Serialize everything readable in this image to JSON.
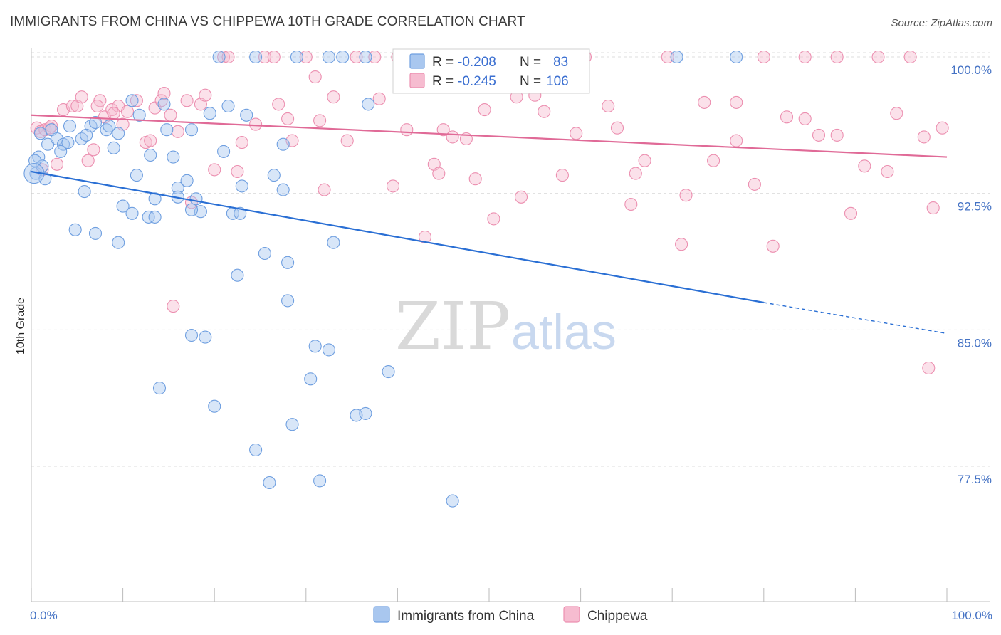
{
  "header": {
    "title": "IMMIGRANTS FROM CHINA VS CHIPPEWA 10TH GRADE CORRELATION CHART",
    "source": "Source: ZipAtlas.com"
  },
  "watermark": {
    "zip": "ZIP",
    "atlas": "atlas"
  },
  "legend": {
    "r_label": "R =",
    "n_label": "N =",
    "rows": [
      {
        "r": "-0.208",
        "n": "83"
      },
      {
        "r": "-0.245",
        "n": "106"
      }
    ]
  },
  "colors": {
    "china_fill": "#a9c7ef",
    "china_stroke": "#6f9fe0",
    "china_line": "#2a6fd4",
    "chippewa_fill": "#f6bcd0",
    "chippewa_stroke": "#ec8fb0",
    "chippewa_line": "#e06a97",
    "tick_label": "#4472c4",
    "grid": "#dddddd"
  },
  "chart_data": {
    "type": "scatter",
    "xlabel": "",
    "ylabel": "10th Grade",
    "xlim": [
      0,
      100
    ],
    "ylim": [
      70.5,
      100.8
    ],
    "x_tick_labels": [
      "0.0%",
      "100.0%"
    ],
    "y_ticks": [
      77.5,
      85.0,
      92.5,
      100.0
    ],
    "y_tick_labels": [
      "77.5%",
      "85.0%",
      "92.5%",
      "100.0%"
    ],
    "grid": true,
    "legend_position": "top-center",
    "series": [
      {
        "name": "Immigrants from China",
        "trend": {
          "x0": 0,
          "y0": 93.7,
          "x1": 80,
          "y1": 86.5,
          "x_dash_end": 100,
          "y_dash_end": 84.8
        },
        "points": [
          [
            0.5,
            93.6
          ],
          [
            0.8,
            94.5
          ],
          [
            1.0,
            95.8
          ],
          [
            1.2,
            94.0
          ],
          [
            1.5,
            93.3
          ],
          [
            1.8,
            95.2
          ],
          [
            2.2,
            96.0
          ],
          [
            2.8,
            95.5
          ],
          [
            3.5,
            95.2
          ],
          [
            4.2,
            96.2
          ],
          [
            5.5,
            95.5
          ],
          [
            6.5,
            96.2
          ],
          [
            7.0,
            96.4
          ],
          [
            8.2,
            96.0
          ],
          [
            9.0,
            95.0
          ],
          [
            11.0,
            97.6
          ],
          [
            11.8,
            96.8
          ],
          [
            14.5,
            97.4
          ],
          [
            14.8,
            96.0
          ],
          [
            15.5,
            94.5
          ],
          [
            17.5,
            96.0
          ],
          [
            19.5,
            96.9
          ],
          [
            20.5,
            100.0
          ],
          [
            21.5,
            97.3
          ],
          [
            23.5,
            96.8
          ],
          [
            24.5,
            100.0
          ],
          [
            27.5,
            95.2
          ],
          [
            29.0,
            100.0
          ],
          [
            32.5,
            100.0
          ],
          [
            34.0,
            100.0
          ],
          [
            36.5,
            100.0
          ],
          [
            36.8,
            97.4
          ],
          [
            3.2,
            94.8
          ],
          [
            4.0,
            95.3
          ],
          [
            6.0,
            95.7
          ],
          [
            9.5,
            95.8
          ],
          [
            11.5,
            93.5
          ],
          [
            13.0,
            94.6
          ],
          [
            16.0,
            92.8
          ],
          [
            17.0,
            93.2
          ],
          [
            18.0,
            92.2
          ],
          [
            21.0,
            94.8
          ],
          [
            23.0,
            92.9
          ],
          [
            26.5,
            93.5
          ],
          [
            27.5,
            92.7
          ],
          [
            5.8,
            92.6
          ],
          [
            10.0,
            91.8
          ],
          [
            11.0,
            91.4
          ],
          [
            12.8,
            91.2
          ],
          [
            13.5,
            91.2
          ],
          [
            16.0,
            92.3
          ],
          [
            18.5,
            91.5
          ],
          [
            22.0,
            91.4
          ],
          [
            22.8,
            91.4
          ],
          [
            17.5,
            91.6
          ],
          [
            4.8,
            90.5
          ],
          [
            7.0,
            90.3
          ],
          [
            9.5,
            89.8
          ],
          [
            25.5,
            89.2
          ],
          [
            28.0,
            88.7
          ],
          [
            33.0,
            89.8
          ],
          [
            22.5,
            88.0
          ],
          [
            28.0,
            86.6
          ],
          [
            17.5,
            84.7
          ],
          [
            19.0,
            84.6
          ],
          [
            31.0,
            84.1
          ],
          [
            32.5,
            83.9
          ],
          [
            30.5,
            82.3
          ],
          [
            39.0,
            82.7
          ],
          [
            14.0,
            81.8
          ],
          [
            20.0,
            80.8
          ],
          [
            35.5,
            80.3
          ],
          [
            36.5,
            80.4
          ],
          [
            28.5,
            79.8
          ],
          [
            24.5,
            78.4
          ],
          [
            26.0,
            76.6
          ],
          [
            31.5,
            76.7
          ],
          [
            46.0,
            75.6
          ],
          [
            70.5,
            100.0
          ],
          [
            77.0,
            100.0
          ],
          [
            0.4,
            94.3
          ],
          [
            8.5,
            96.2
          ],
          [
            13.5,
            92.2
          ]
        ]
      },
      {
        "name": "Chippewa",
        "trend": {
          "x0": 0,
          "y0": 96.8,
          "x1": 100,
          "y1": 94.5
        },
        "points": [
          [
            0.6,
            96.1
          ],
          [
            1.0,
            95.9
          ],
          [
            1.5,
            96.0
          ],
          [
            2.2,
            96.2
          ],
          [
            2.8,
            94.1
          ],
          [
            3.5,
            97.1
          ],
          [
            4.5,
            97.3
          ],
          [
            5.0,
            97.3
          ],
          [
            5.5,
            97.8
          ],
          [
            6.2,
            94.3
          ],
          [
            6.8,
            94.9
          ],
          [
            7.5,
            97.6
          ],
          [
            8.0,
            96.7
          ],
          [
            8.8,
            97.1
          ],
          [
            9.5,
            97.3
          ],
          [
            10.5,
            97.0
          ],
          [
            11.5,
            97.6
          ],
          [
            12.5,
            95.3
          ],
          [
            13.0,
            95.4
          ],
          [
            13.5,
            97.2
          ],
          [
            14.2,
            97.6
          ],
          [
            14.5,
            98.0
          ],
          [
            15.2,
            96.8
          ],
          [
            16.0,
            95.9
          ],
          [
            17.0,
            97.6
          ],
          [
            18.5,
            97.4
          ],
          [
            19.0,
            97.9
          ],
          [
            20.0,
            93.8
          ],
          [
            21.0,
            100.0
          ],
          [
            21.5,
            100.0
          ],
          [
            22.5,
            93.7
          ],
          [
            23.0,
            95.3
          ],
          [
            24.5,
            96.3
          ],
          [
            25.5,
            100.0
          ],
          [
            26.5,
            100.0
          ],
          [
            27.0,
            97.4
          ],
          [
            28.0,
            96.6
          ],
          [
            28.5,
            95.4
          ],
          [
            30.0,
            100.0
          ],
          [
            31.0,
            98.9
          ],
          [
            31.5,
            96.5
          ],
          [
            32.0,
            92.7
          ],
          [
            33.0,
            97.8
          ],
          [
            34.5,
            95.4
          ],
          [
            35.5,
            100.0
          ],
          [
            37.5,
            100.0
          ],
          [
            38.0,
            97.7
          ],
          [
            39.5,
            92.9
          ],
          [
            40.0,
            100.0
          ],
          [
            41.0,
            96.0
          ],
          [
            42.0,
            100.0
          ],
          [
            43.0,
            90.1
          ],
          [
            44.0,
            94.1
          ],
          [
            44.5,
            93.6
          ],
          [
            45.0,
            96.0
          ],
          [
            46.0,
            95.6
          ],
          [
            47.5,
            95.5
          ],
          [
            48.5,
            93.3
          ],
          [
            49.5,
            97.1
          ],
          [
            50.5,
            91.1
          ],
          [
            52.0,
            100.0
          ],
          [
            53.0,
            97.8
          ],
          [
            53.5,
            92.3
          ],
          [
            55.0,
            97.9
          ],
          [
            56.0,
            97.0
          ],
          [
            58.0,
            93.5
          ],
          [
            59.5,
            95.8
          ],
          [
            60.5,
            100.0
          ],
          [
            63.0,
            97.3
          ],
          [
            64.0,
            96.1
          ],
          [
            65.5,
            91.9
          ],
          [
            66.0,
            93.6
          ],
          [
            67.0,
            94.3
          ],
          [
            69.5,
            100.0
          ],
          [
            71.0,
            89.7
          ],
          [
            71.5,
            92.4
          ],
          [
            73.5,
            97.5
          ],
          [
            74.5,
            94.3
          ],
          [
            77.0,
            97.5
          ],
          [
            77.0,
            95.4
          ],
          [
            79.0,
            93.0
          ],
          [
            80.0,
            100.0
          ],
          [
            81.0,
            89.6
          ],
          [
            82.5,
            96.7
          ],
          [
            84.5,
            96.6
          ],
          [
            84.5,
            100.0
          ],
          [
            86.0,
            95.7
          ],
          [
            88.0,
            95.7
          ],
          [
            88.0,
            100.0
          ],
          [
            89.5,
            91.4
          ],
          [
            91.0,
            94.0
          ],
          [
            92.5,
            100.0
          ],
          [
            93.5,
            93.7
          ],
          [
            94.5,
            96.9
          ],
          [
            96.0,
            100.0
          ],
          [
            97.5,
            95.6
          ],
          [
            98.5,
            91.7
          ],
          [
            99.5,
            96.1
          ],
          [
            98.0,
            82.9
          ],
          [
            15.5,
            86.3
          ],
          [
            17.5,
            92.0
          ],
          [
            9.0,
            96.9
          ],
          [
            7.2,
            97.3
          ],
          [
            10.0,
            96.3
          ],
          [
            2.0,
            96.1
          ],
          [
            1.2,
            93.8
          ]
        ]
      }
    ]
  },
  "bottom_legend": [
    {
      "label": "Immigrants from China"
    },
    {
      "label": "Chippewa"
    }
  ]
}
